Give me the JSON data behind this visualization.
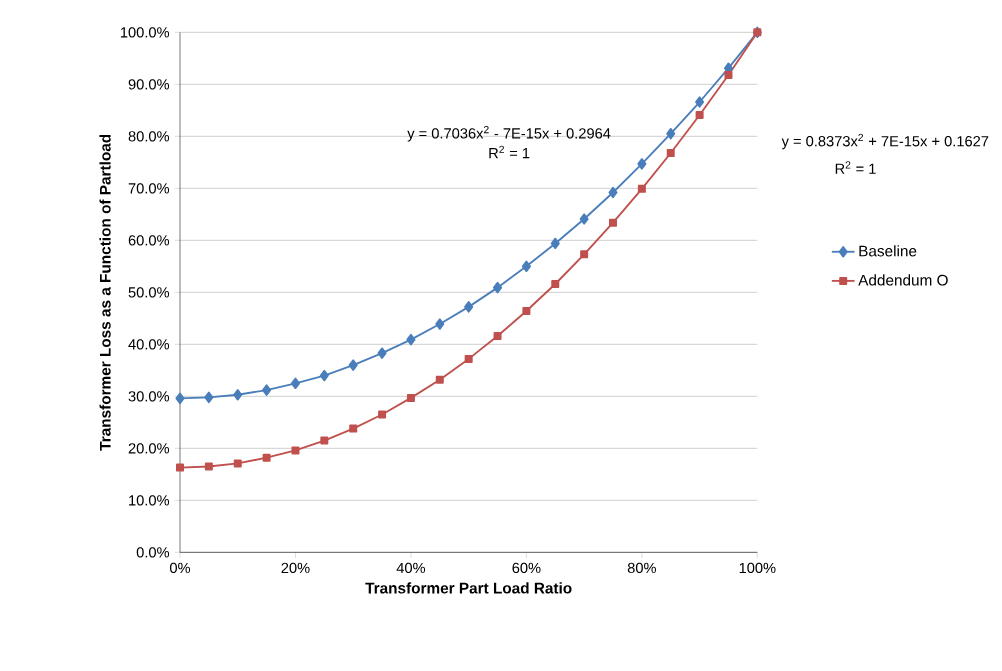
{
  "chart_data": {
    "type": "line",
    "xlabel": "Transformer Part Load Ratio",
    "ylabel": "Transformer Loss as a Function of Partload",
    "x": [
      0,
      5,
      10,
      15,
      20,
      25,
      30,
      35,
      40,
      45,
      50,
      55,
      60,
      65,
      70,
      75,
      80,
      85,
      90,
      95,
      100
    ],
    "series": [
      {
        "name": "Baseline",
        "color": "#4a7ebb",
        "marker": "diamond",
        "values": [
          29.6,
          29.8,
          30.3,
          31.2,
          32.5,
          34.0,
          36.0,
          38.3,
          40.9,
          43.9,
          47.2,
          50.9,
          55.0,
          59.4,
          64.1,
          69.2,
          74.7,
          80.5,
          86.6,
          93.1,
          100.0
        ]
      },
      {
        "name": "Addendum O",
        "color": "#c0504d",
        "marker": "square",
        "values": [
          16.3,
          16.5,
          17.1,
          18.2,
          19.6,
          21.5,
          23.8,
          26.5,
          29.7,
          33.2,
          37.2,
          41.6,
          46.4,
          51.6,
          57.3,
          63.4,
          69.9,
          76.8,
          84.1,
          91.8,
          100.0
        ]
      }
    ],
    "xlim": [
      0,
      100
    ],
    "ylim": [
      0,
      100
    ],
    "xticks": [
      {
        "value": 0,
        "label": "0%"
      },
      {
        "value": 20,
        "label": "20%"
      },
      {
        "value": 40,
        "label": "40%"
      },
      {
        "value": 60,
        "label": "60%"
      },
      {
        "value": 80,
        "label": "80%"
      },
      {
        "value": 100,
        "label": "100%"
      }
    ],
    "yticks": [
      {
        "value": 0,
        "label": "0.0%"
      },
      {
        "value": 10,
        "label": "10.0%"
      },
      {
        "value": 20,
        "label": "20.0%"
      },
      {
        "value": 30,
        "label": "30.0%"
      },
      {
        "value": 40,
        "label": "40.0%"
      },
      {
        "value": 50,
        "label": "50.0%"
      },
      {
        "value": 60,
        "label": "60.0%"
      },
      {
        "value": 70,
        "label": "70.0%"
      },
      {
        "value": 80,
        "label": "80.0%"
      },
      {
        "value": 90,
        "label": "90.0%"
      },
      {
        "value": 100,
        "label": "100.0%"
      }
    ],
    "grid": "y",
    "legend": "right",
    "line_style": "solid",
    "annotations": [
      "y = 0.7036x$^{2}$ - 7E-15x + 0.2964",
      "R$^{2}$ = 1",
      "y = 0.8373x$^{2}$ + 7E-15x + 0.1627",
      "R$^{2}$ = 1"
    ]
  }
}
